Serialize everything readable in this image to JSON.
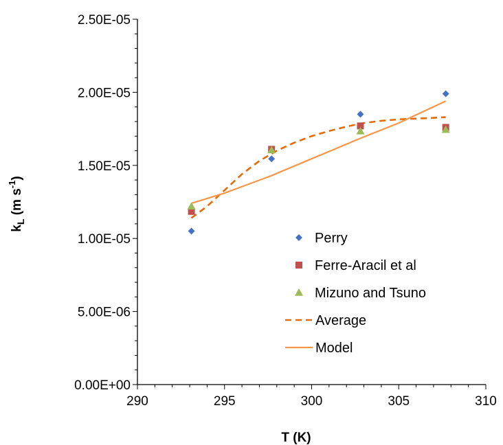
{
  "chart_data": {
    "type": "scatter",
    "xlabel": "T (K)",
    "ylabel": {
      "base": "k",
      "sub": "L",
      "unit_prefix": " (m s",
      "sup": "-1",
      "unit_suffix": ")"
    },
    "xlim": [
      290,
      310
    ],
    "ylim": [
      0,
      2.5e-05
    ],
    "x_ticks": [
      290,
      295,
      300,
      305,
      310
    ],
    "x_tick_labels": [
      "290",
      "295",
      "300",
      "305",
      "310"
    ],
    "y_ticks": [
      0,
      5e-06,
      1e-05,
      1.5e-05,
      2e-05,
      2.5e-05
    ],
    "y_tick_labels": [
      "0.00E+00",
      "5.00E-06",
      "1.00E-05",
      "1.50E-05",
      "2.00E-05",
      "2.50E-05"
    ],
    "grid": false,
    "legend_position": "inside-right",
    "colors": {
      "perry": "#4472C4",
      "ferre": "#C0504D",
      "mizuno": "#9BBB59",
      "average": "#E36C09",
      "model": "#F79646"
    },
    "series": [
      {
        "name": "Perry",
        "kind": "scatter",
        "marker": "diamond",
        "color": "#4472C4",
        "x": [
          293.1,
          297.7,
          302.8,
          307.7
        ],
        "y": [
          1.05e-05,
          1.545e-05,
          1.85e-05,
          1.99e-05
        ]
      },
      {
        "name": "Ferre-Aracil et al",
        "kind": "scatter",
        "marker": "square",
        "color": "#C0504D",
        "x": [
          293.1,
          297.7,
          302.8,
          307.7
        ],
        "y": [
          1.185e-05,
          1.61e-05,
          1.77e-05,
          1.76e-05
        ]
      },
      {
        "name": "Mizuno and Tsuno",
        "kind": "scatter",
        "marker": "triangle",
        "color": "#9BBB59",
        "x": [
          293.1,
          297.7,
          302.8,
          307.7
        ],
        "y": [
          1.22e-05,
          1.605e-05,
          1.735e-05,
          1.745e-05
        ]
      },
      {
        "name": "Average",
        "kind": "line",
        "dash": true,
        "color": "#E36C09",
        "x": [
          293.1,
          294.0,
          295.0,
          296.0,
          297.0,
          298.0,
          299.0,
          300.0,
          301.0,
          302.0,
          303.0,
          304.0,
          305.0,
          306.0,
          307.0,
          307.7
        ],
        "y": [
          1.14e-05,
          1.22e-05,
          1.33e-05,
          1.44e-05,
          1.53e-05,
          1.6e-05,
          1.655e-05,
          1.7e-05,
          1.735e-05,
          1.765e-05,
          1.79e-05,
          1.805e-05,
          1.815e-05,
          1.82e-05,
          1.825e-05,
          1.83e-05
        ]
      },
      {
        "name": "Model",
        "kind": "line",
        "dash": false,
        "color": "#F79646",
        "x": [
          293.1,
          295.0,
          297.7,
          300.0,
          302.8,
          305.0,
          307.7
        ],
        "y": [
          1.24e-05,
          1.31e-05,
          1.43e-05,
          1.545e-05,
          1.685e-05,
          1.79e-05,
          1.94e-05
        ]
      }
    ]
  }
}
